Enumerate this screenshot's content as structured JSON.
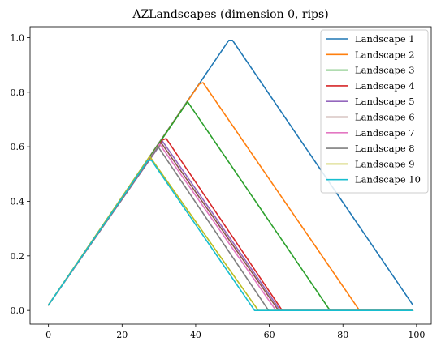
{
  "chart_data": {
    "type": "line",
    "title": "AZLandscapes (dimension 0, rips)",
    "xlabel": "",
    "ylabel": "",
    "xlim": [
      -5,
      104
    ],
    "ylim": [
      -0.05,
      1.04
    ],
    "xticks": [
      0,
      20,
      40,
      60,
      80,
      100
    ],
    "yticks": [
      0.0,
      0.2,
      0.4,
      0.6,
      0.8,
      1.0
    ],
    "xtick_labels": [
      "0",
      "20",
      "40",
      "60",
      "80",
      "100"
    ],
    "ytick_labels": [
      "0.0",
      "0.2",
      "0.4",
      "0.6",
      "0.8",
      "1.0"
    ],
    "legend_position": "top-right",
    "grid": false,
    "series": [
      {
        "name": "Landscape 1",
        "color": "#1f77b4",
        "points": [
          [
            0,
            0.02
          ],
          [
            49,
            0.99
          ],
          [
            50,
            0.99
          ],
          [
            99,
            0.02
          ]
        ]
      },
      {
        "name": "Landscape 2",
        "color": "#ff7f0e",
        "points": [
          [
            0,
            0.02
          ],
          [
            41,
            0.83
          ],
          [
            42,
            0.835
          ],
          [
            84.5,
            0.0
          ],
          [
            99,
            0.0
          ]
        ]
      },
      {
        "name": "Landscape 3",
        "color": "#2ca02c",
        "points": [
          [
            0,
            0.02
          ],
          [
            37.8,
            0.765
          ],
          [
            76.5,
            0.0
          ],
          [
            99,
            0.0
          ]
        ]
      },
      {
        "name": "Landscape 4",
        "color": "#d62728",
        "points": [
          [
            0,
            0.02
          ],
          [
            31,
            0.625
          ],
          [
            32,
            0.63
          ],
          [
            63.5,
            0.0
          ],
          [
            99,
            0.0
          ]
        ]
      },
      {
        "name": "Landscape 5",
        "color": "#9467bd",
        "points": [
          [
            0,
            0.02
          ],
          [
            31,
            0.62
          ],
          [
            63,
            0.0
          ],
          [
            99,
            0.0
          ]
        ]
      },
      {
        "name": "Landscape 6",
        "color": "#8c564b",
        "points": [
          [
            0,
            0.02
          ],
          [
            30.6,
            0.615
          ],
          [
            62.5,
            0.0
          ],
          [
            99,
            0.0
          ]
        ]
      },
      {
        "name": "Landscape 7",
        "color": "#e377c2",
        "points": [
          [
            0,
            0.02
          ],
          [
            30.2,
            0.61
          ],
          [
            61.8,
            0.0
          ],
          [
            99,
            0.0
          ]
        ]
      },
      {
        "name": "Landscape 8",
        "color": "#7f7f7f",
        "points": [
          [
            0,
            0.02
          ],
          [
            29.8,
            0.6
          ],
          [
            59.8,
            0.0
          ],
          [
            99,
            0.0
          ]
        ]
      },
      {
        "name": "Landscape 9",
        "color": "#bcbd22",
        "points": [
          [
            0,
            0.02
          ],
          [
            27.5,
            0.565
          ],
          [
            57,
            0.0
          ],
          [
            99,
            0.0
          ]
        ]
      },
      {
        "name": "Landscape 10",
        "color": "#17becf",
        "points": [
          [
            0,
            0.02
          ],
          [
            27,
            0.55
          ],
          [
            28,
            0.55
          ],
          [
            56,
            0.0
          ],
          [
            99,
            0.0
          ]
        ]
      }
    ]
  }
}
